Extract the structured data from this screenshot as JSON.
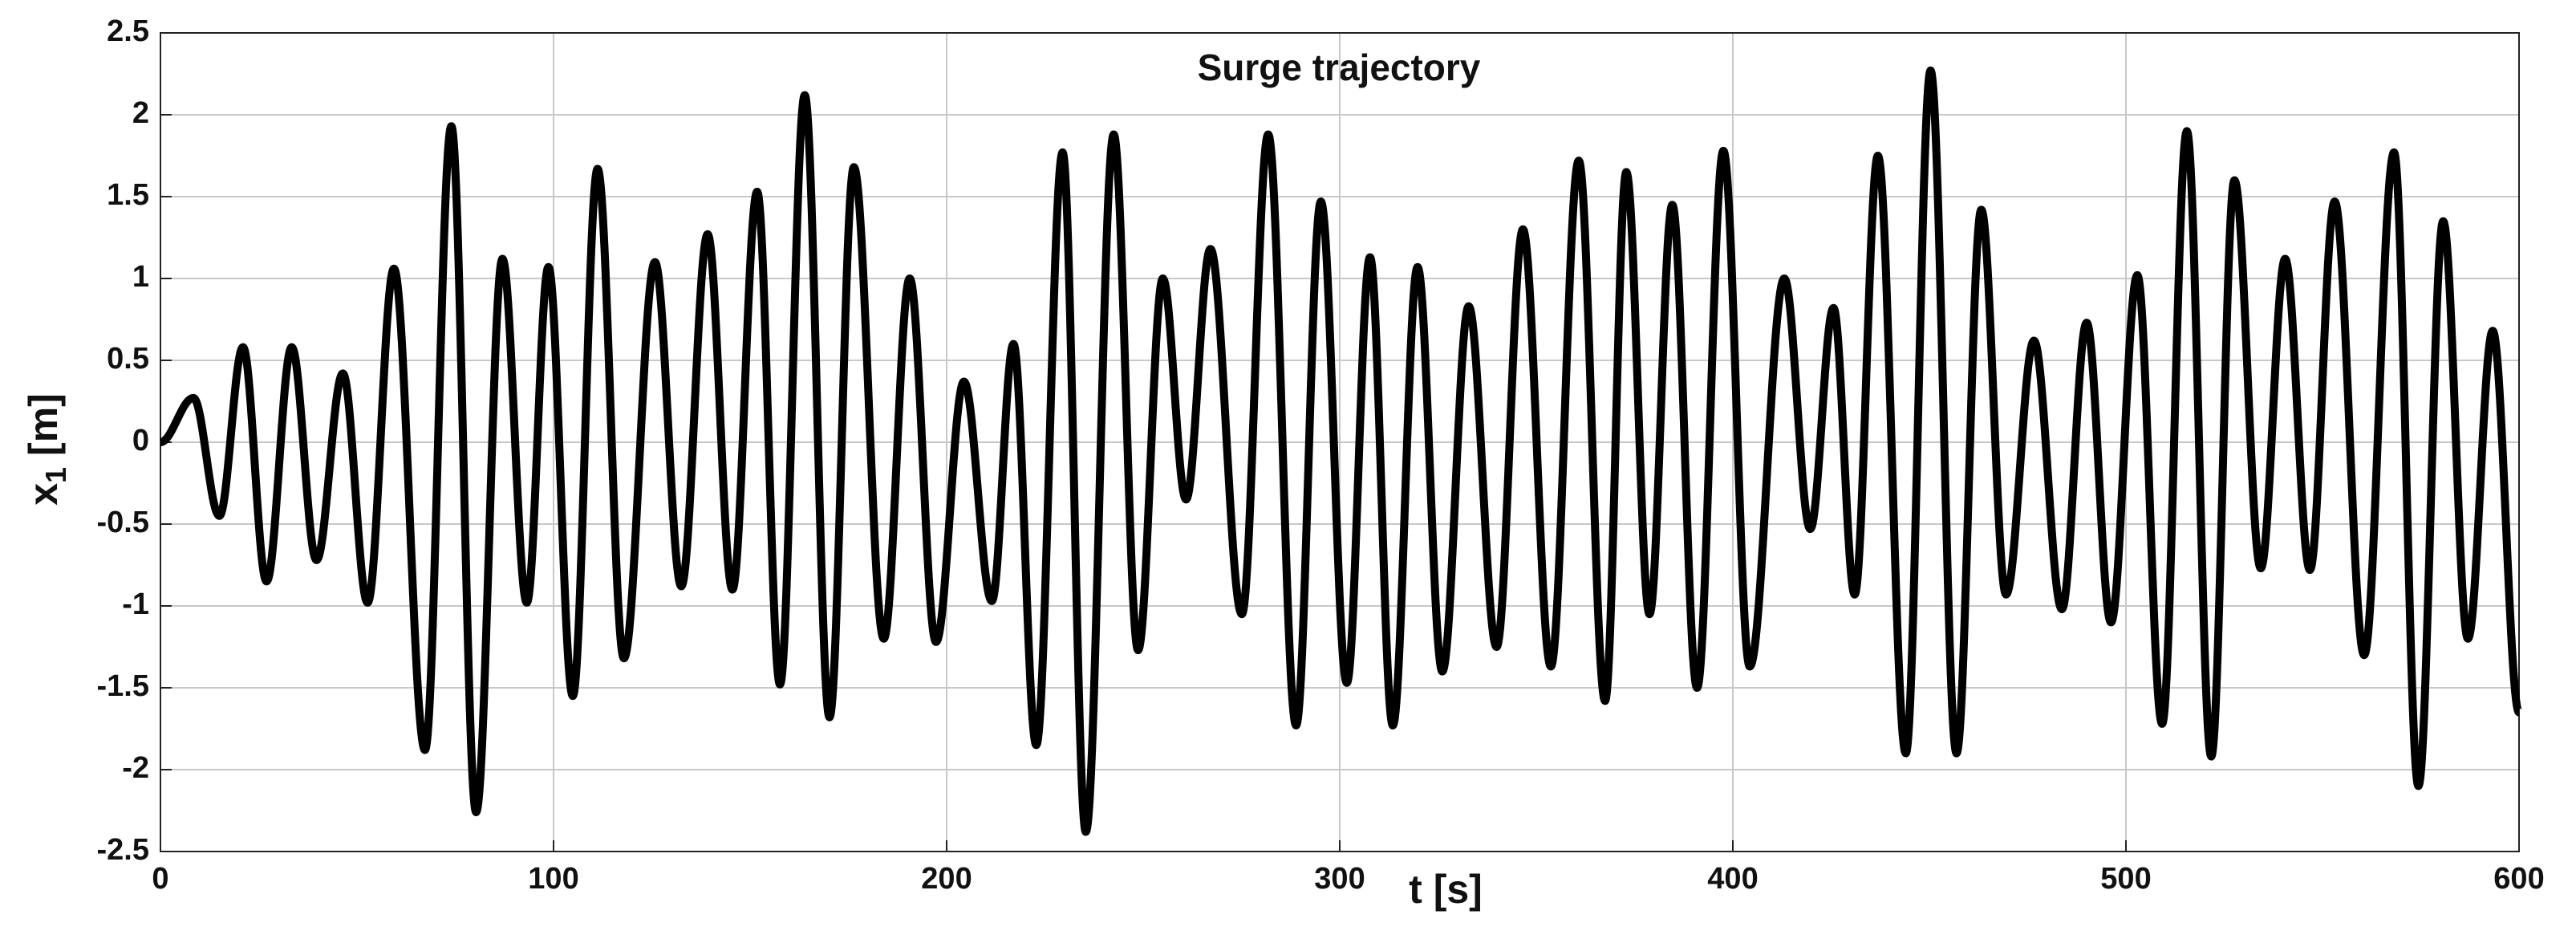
{
  "chart_data": {
    "type": "line",
    "title": "Surge trajectory",
    "xlabel": "t [s]",
    "ylabel": [
      "x",
      "1",
      "[m]"
    ],
    "x": [
      0,
      8.4,
      15,
      21,
      27,
      33.4,
      39.7,
      46.4,
      52.7,
      59.4,
      67.3,
      74,
      80.3,
      87,
      93.2,
      98.7,
      104.9,
      111.2,
      117.9,
      125.8,
      132.5,
      139.2,
      145.5,
      151.8,
      157.6,
      163.9,
      170.2,
      176.4,
      184,
      190.6,
      197.3,
      204.4,
      211.5,
      217,
      222.8,
      229.5,
      235.4,
      242.5,
      248.7,
      255,
      260.9,
      267.1,
      275.1,
      281.8,
      288.9,
      295.2,
      301.8,
      307.7,
      313.5,
      319.8,
      326.1,
      332.8,
      339.9,
      346.6,
      353.7,
      360.8,
      367.5,
      372.9,
      378.8,
      384.6,
      390.9,
      397.6,
      404.3,
      413.1,
      419.7,
      425.6,
      431,
      436.9,
      444,
      450.3,
      456.9,
      463.2,
      469.5,
      476.6,
      483.7,
      490,
      496.2,
      502.9,
      509.2,
      515.5,
      521.7,
      527.6,
      534.3,
      540.5,
      546.8,
      553.1,
      560.6,
      568.2,
      574.4,
      580.7,
      587,
      593.3,
      600
    ],
    "values": [
      0,
      0.27,
      -0.45,
      0.58,
      -0.85,
      0.58,
      -0.72,
      0.42,
      -0.98,
      1.06,
      -1.88,
      1.93,
      -2.26,
      1.12,
      -0.98,
      1.07,
      -1.55,
      1.67,
      -1.32,
      1.1,
      -0.88,
      1.27,
      -0.9,
      1.53,
      -1.48,
      2.12,
      -1.68,
      1.68,
      -1.2,
      1.0,
      -1.22,
      0.37,
      -0.97,
      0.6,
      -1.85,
      1.77,
      -2.38,
      1.88,
      -1.27,
      1.0,
      -0.35,
      1.18,
      -1.05,
      1.88,
      -1.73,
      1.47,
      -1.47,
      1.13,
      -1.73,
      1.07,
      -1.4,
      0.83,
      -1.25,
      1.3,
      -1.37,
      1.72,
      -1.58,
      1.65,
      -1.05,
      1.45,
      -1.5,
      1.78,
      -1.37,
      1.0,
      -0.53,
      0.82,
      -0.93,
      1.75,
      -1.9,
      2.27,
      -1.9,
      1.42,
      -0.93,
      0.62,
      -1.02,
      0.73,
      -1.1,
      1.02,
      -1.72,
      1.9,
      -1.92,
      1.6,
      -0.77,
      1.12,
      -0.78,
      1.47,
      -1.3,
      1.77,
      -2.1,
      1.35,
      -1.2,
      0.68,
      -1.65
    ],
    "color": "#000000",
    "xlim": [
      0,
      600
    ],
    "xticks": [
      0,
      100,
      200,
      300,
      400,
      500,
      600
    ],
    "ylim": [
      -2.5,
      2.5
    ],
    "yticks": [
      -2.5,
      -2,
      -1.5,
      -1,
      -0.5,
      0,
      0.5,
      1,
      1.5,
      2,
      2.5
    ],
    "grid": true
  }
}
